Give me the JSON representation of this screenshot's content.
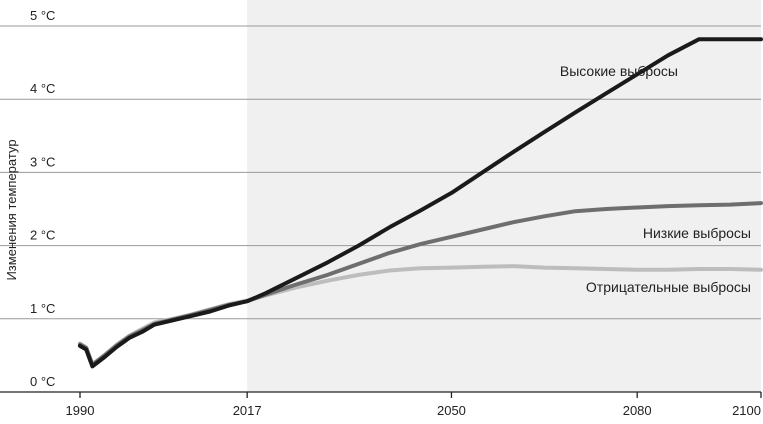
{
  "chart_data": {
    "type": "line",
    "title": "",
    "xlabel": "",
    "ylabel": "Изменения температур",
    "xlim": [
      1990,
      2100
    ],
    "ylim": [
      0,
      5
    ],
    "x_ticks": [
      {
        "value": 1990,
        "label": "1990"
      },
      {
        "value": 2017,
        "label": "2017"
      },
      {
        "value": 2050,
        "label": "2050"
      },
      {
        "value": 2080,
        "label": "2080"
      },
      {
        "value": 2100,
        "label": "2100"
      }
    ],
    "y_ticks": [
      {
        "value": 0,
        "label": "0 °C"
      },
      {
        "value": 1,
        "label": "1 °C"
      },
      {
        "value": 2,
        "label": "2 °C"
      },
      {
        "value": 3,
        "label": "3 °C"
      },
      {
        "value": 4,
        "label": "4 °C"
      },
      {
        "value": 5,
        "label": "5 °C"
      }
    ],
    "grid": true,
    "shaded_region": {
      "x_start": 2017,
      "x_end": 2100,
      "color": "#f0f0f0"
    },
    "series": [
      {
        "name": "Высокие выбросы",
        "color": "#1a1a1a",
        "x": [
          1990,
          1991,
          1992,
          1994,
          1996,
          1998,
          2000,
          2002,
          2005,
          2008,
          2011,
          2014,
          2017,
          2020,
          2025,
          2030,
          2035,
          2040,
          2045,
          2050,
          2055,
          2060,
          2065,
          2070,
          2075,
          2080,
          2085,
          2090,
          2095,
          2098,
          2100
        ],
        "y": [
          0.63,
          0.58,
          0.35,
          0.48,
          0.62,
          0.74,
          0.82,
          0.92,
          0.98,
          1.04,
          1.1,
          1.18,
          1.24,
          1.35,
          1.56,
          1.77,
          2.0,
          2.25,
          2.48,
          2.72,
          3.0,
          3.28,
          3.55,
          3.82,
          4.08,
          4.34,
          4.6,
          4.86,
          5.12,
          5.3,
          5.35
        ]
      },
      {
        "name": "Низкие выбросы",
        "color": "#6e6e6e",
        "x": [
          1990,
          1991,
          1992,
          1994,
          1996,
          1998,
          2000,
          2002,
          2005,
          2008,
          2011,
          2014,
          2017,
          2020,
          2025,
          2030,
          2035,
          2040,
          2045,
          2050,
          2055,
          2060,
          2065,
          2070,
          2075,
          2080,
          2085,
          2090,
          2095,
          2100
        ],
        "y": [
          0.65,
          0.6,
          0.37,
          0.5,
          0.64,
          0.76,
          0.84,
          0.93,
          0.99,
          1.05,
          1.12,
          1.19,
          1.24,
          1.33,
          1.47,
          1.6,
          1.75,
          1.9,
          2.02,
          2.12,
          2.22,
          2.32,
          2.4,
          2.47,
          2.5,
          2.52,
          2.54,
          2.55,
          2.56,
          2.58
        ]
      },
      {
        "name": "Отрицательные выбросы",
        "color": "#bdbdbd",
        "x": [
          1990,
          1991,
          1992,
          1994,
          1996,
          1998,
          2000,
          2002,
          2005,
          2008,
          2011,
          2014,
          2017,
          2020,
          2025,
          2030,
          2035,
          2040,
          2045,
          2050,
          2055,
          2060,
          2065,
          2070,
          2075,
          2080,
          2085,
          2090,
          2095,
          2100
        ],
        "y": [
          0.66,
          0.61,
          0.38,
          0.51,
          0.65,
          0.77,
          0.86,
          0.95,
          1.0,
          1.06,
          1.13,
          1.2,
          1.25,
          1.32,
          1.43,
          1.52,
          1.6,
          1.66,
          1.69,
          1.7,
          1.71,
          1.72,
          1.7,
          1.69,
          1.68,
          1.67,
          1.67,
          1.68,
          1.68,
          1.67
        ]
      }
    ]
  }
}
